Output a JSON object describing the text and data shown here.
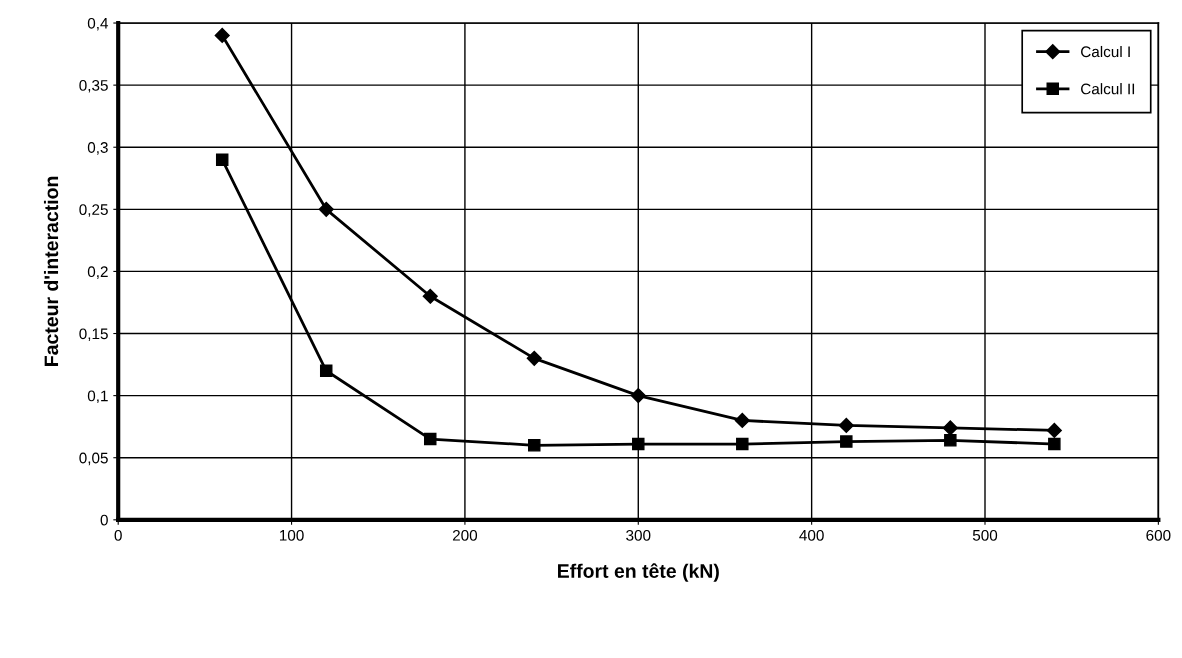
{
  "chart_data": {
    "type": "line",
    "xlabel": "Effort en tête (kN)",
    "ylabel": "Facteur d'interaction",
    "x": [
      60,
      120,
      180,
      240,
      300,
      360,
      420,
      480,
      540
    ],
    "series": [
      {
        "name": "Calcul I",
        "color": "#000000",
        "marker": "diamond",
        "values": [
          0.39,
          0.25,
          0.18,
          0.13,
          0.1,
          0.08,
          0.076,
          0.074,
          0.072
        ]
      },
      {
        "name": "Calcul II",
        "color": "#000000",
        "marker": "square",
        "values": [
          0.29,
          0.12,
          0.065,
          0.06,
          0.061,
          0.061,
          0.063,
          0.064,
          0.061
        ]
      }
    ],
    "xlim": [
      0,
      600
    ],
    "xticks": [
      0,
      100,
      200,
      300,
      400,
      500,
      600
    ],
    "ylim": [
      0,
      0.4
    ],
    "yticks": [
      0,
      {
        "value": 0.05,
        "label": "0,05"
      },
      {
        "value": 0.1,
        "label": "0,1"
      },
      {
        "value": 0.15,
        "label": "0,15"
      },
      {
        "value": 0.2,
        "label": "0,2"
      },
      {
        "value": 0.25,
        "label": "0,25"
      },
      {
        "value": 0.3,
        "label": "0,3"
      },
      {
        "value": 0.35,
        "label": "0,35"
      },
      {
        "value": 0.4,
        "label": "0,4"
      }
    ],
    "grid": true,
    "legend": "top right",
    "line_style": "solid"
  }
}
